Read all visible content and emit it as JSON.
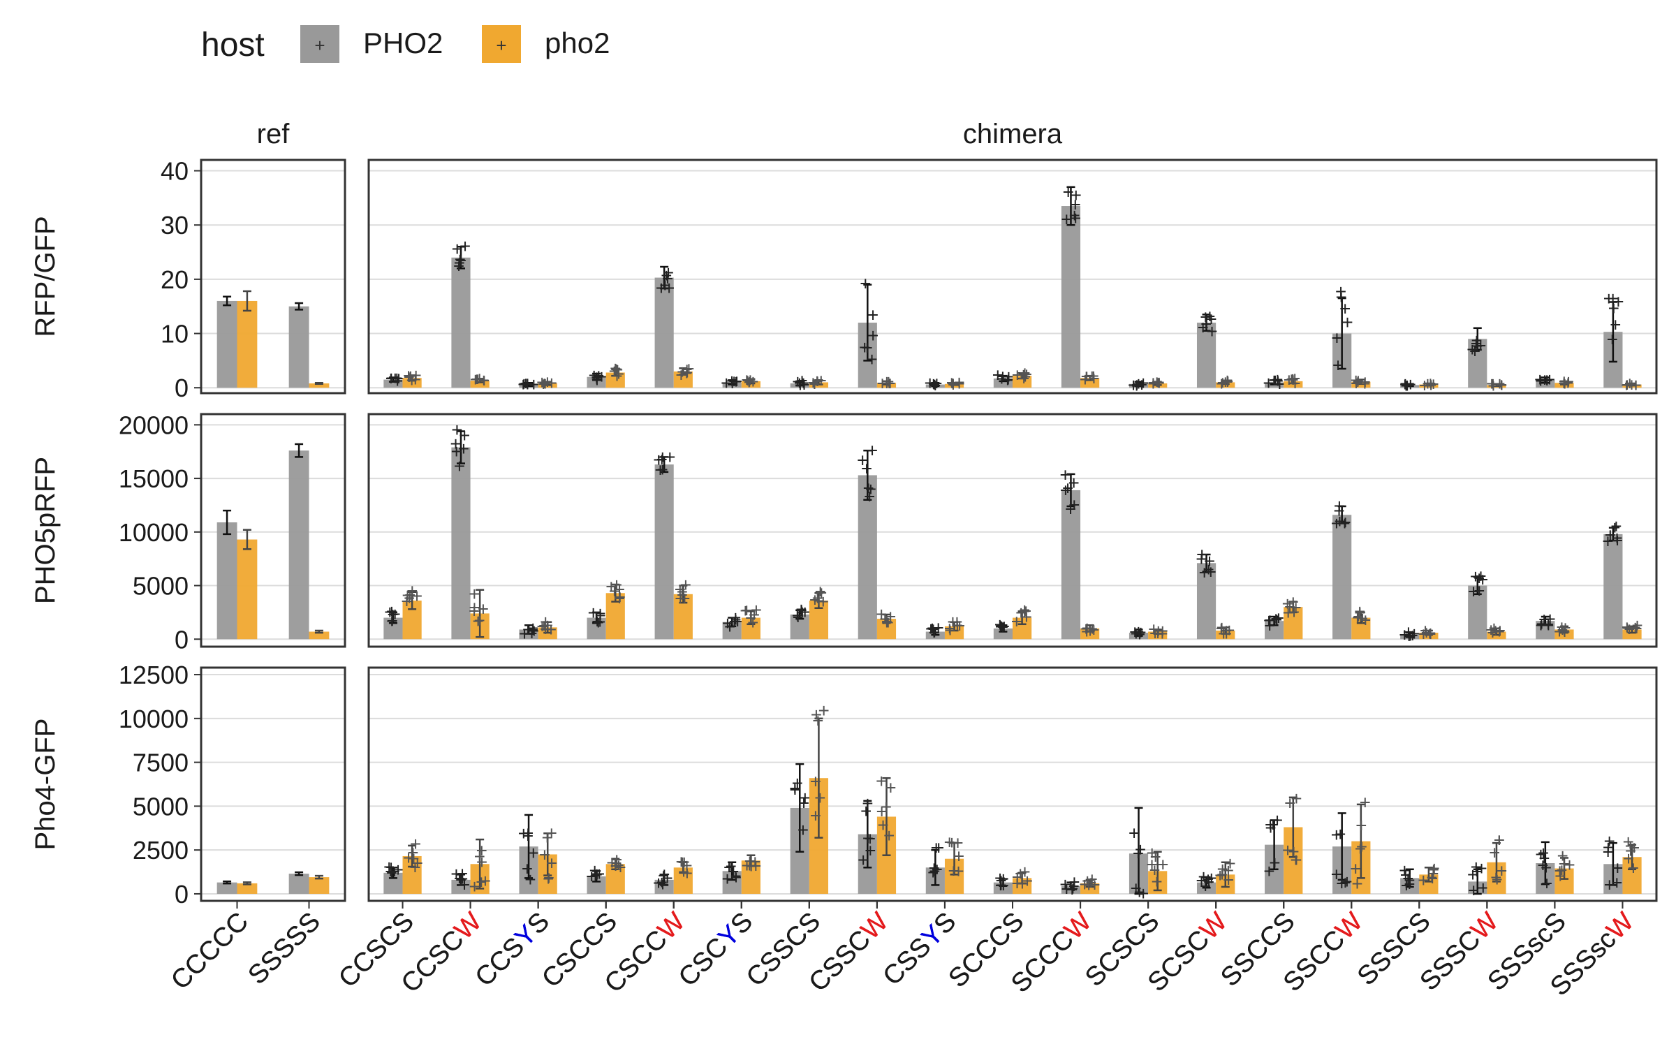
{
  "legend": {
    "title": "host",
    "items": [
      {
        "label": "PHO2",
        "color": "#999999"
      },
      {
        "label": "pho2",
        "color": "#F0A830"
      }
    ]
  },
  "chart_data": {
    "type": "bar",
    "facet_columns": [
      "ref",
      "chimera"
    ],
    "columns": {
      "ref": [
        [
          {
            "t": "CCCCC"
          }
        ],
        [
          {
            "t": "SSSSS"
          }
        ]
      ],
      "chimera": [
        [
          {
            "t": "CCSCS"
          }
        ],
        [
          {
            "t": "CCSC"
          },
          {
            "t": "W",
            "c": "#e41a1c"
          }
        ],
        [
          {
            "t": "CCS"
          },
          {
            "t": "Y",
            "c": "#0000dd"
          },
          {
            "t": "S"
          }
        ],
        [
          {
            "t": "CSCCS"
          }
        ],
        [
          {
            "t": "CSCC"
          },
          {
            "t": "W",
            "c": "#e41a1c"
          }
        ],
        [
          {
            "t": "CSC"
          },
          {
            "t": "Y",
            "c": "#0000dd"
          },
          {
            "t": "S"
          }
        ],
        [
          {
            "t": "CSSCS"
          }
        ],
        [
          {
            "t": "CSSC"
          },
          {
            "t": "W",
            "c": "#e41a1c"
          }
        ],
        [
          {
            "t": "CSS"
          },
          {
            "t": "Y",
            "c": "#0000dd"
          },
          {
            "t": "S"
          }
        ],
        [
          {
            "t": "SCCCS"
          }
        ],
        [
          {
            "t": "SCCC"
          },
          {
            "t": "W",
            "c": "#e41a1c"
          }
        ],
        [
          {
            "t": "SCSCS"
          }
        ],
        [
          {
            "t": "SCSC"
          },
          {
            "t": "W",
            "c": "#e41a1c"
          }
        ],
        [
          {
            "t": "SSCCS"
          }
        ],
        [
          {
            "t": "SSCC"
          },
          {
            "t": "W",
            "c": "#e41a1c"
          }
        ],
        [
          {
            "t": "SSSCS"
          }
        ],
        [
          {
            "t": "SSSC"
          },
          {
            "t": "W",
            "c": "#e41a1c"
          }
        ],
        [
          {
            "t": "SSSscS"
          }
        ],
        [
          {
            "t": "SSSsc"
          },
          {
            "t": "W",
            "c": "#e41a1c"
          }
        ]
      ]
    },
    "series": [
      "PHO2",
      "pho2"
    ],
    "rows": [
      {
        "ylabel": "RFP/GFP",
        "ylim": [
          -1,
          42
        ],
        "ticks": [
          0,
          10,
          20,
          30,
          40
        ],
        "ref": {
          "PHO2": [
            16,
            15
          ],
          "pho2": [
            16,
            0.8
          ],
          "PHO2_err": [
            0.8,
            0.6
          ],
          "pho2_err": [
            1.8,
            0.1
          ]
        },
        "chimera": {
          "PHO2": [
            1.5,
            24,
            0.6,
            2.0,
            20.3,
            1.0,
            0.8,
            12,
            0.6,
            1.7,
            33.5,
            0.7,
            12,
            1.0,
            10,
            0.5,
            9.0,
            1.4,
            10.3
          ],
          "pho2": [
            1.8,
            1.3,
            0.8,
            2.8,
            3.0,
            1.2,
            1.0,
            0.9,
            0.7,
            2.2,
            1.8,
            0.8,
            1.0,
            1.2,
            1.1,
            0.6,
            0.5,
            0.9,
            0.6
          ],
          "PHO2_err": [
            0.4,
            2.0,
            0.3,
            0.6,
            2.0,
            0.4,
            0.4,
            7.0,
            0.3,
            0.5,
            3.5,
            0.4,
            1.5,
            0.4,
            6.5,
            0.2,
            2.0,
            0.5,
            5.5
          ],
          "pho2_err": [
            0.5,
            0.3,
            0.3,
            0.6,
            0.6,
            0.4,
            0.4,
            0.3,
            0.2,
            0.5,
            0.4,
            0.3,
            0.3,
            0.4,
            0.4,
            0.2,
            0.2,
            0.3,
            0.2
          ]
        }
      },
      {
        "ylabel": "PHO5pRFP",
        "ylim": [
          -700,
          21000
        ],
        "ticks": [
          0,
          5000,
          10000,
          15000,
          20000
        ],
        "ref": {
          "PHO2": [
            10900,
            17600
          ],
          "pho2": [
            9300,
            700
          ],
          "PHO2_err": [
            1100,
            600
          ],
          "pho2_err": [
            900,
            100
          ]
        },
        "chimera": {
          "PHO2": [
            2000,
            17900,
            900,
            2000,
            16300,
            1600,
            2300,
            15300,
            700,
            1000,
            13900,
            600,
            7100,
            1700,
            11600,
            400,
            5000,
            1700,
            9800
          ],
          "pho2": [
            3600,
            2400,
            1100,
            4300,
            4200,
            2000,
            3600,
            1900,
            1200,
            2000,
            1000,
            700,
            800,
            3000,
            2000,
            600,
            700,
            900,
            900
          ],
          "PHO2_err": [
            500,
            1500,
            400,
            500,
            700,
            400,
            400,
            2300,
            300,
            300,
            1500,
            300,
            800,
            400,
            800,
            200,
            800,
            400,
            600
          ],
          "pho2_err": [
            800,
            2200,
            500,
            800,
            800,
            600,
            700,
            400,
            400,
            600,
            300,
            200,
            300,
            500,
            500,
            200,
            300,
            300,
            300
          ]
        }
      },
      {
        "ylabel": "Pho4-GFP",
        "ylim": [
          -400,
          12900
        ],
        "ticks": [
          0,
          2500,
          5000,
          7500,
          10000,
          12500
        ],
        "ref": {
          "PHO2": [
            650,
            1150
          ],
          "pho2": [
            600,
            950
          ],
          "PHO2_err": [
            60,
            80
          ],
          "pho2_err": [
            60,
            80
          ]
        },
        "chimera": {
          "PHO2": [
            1200,
            800,
            2700,
            1000,
            800,
            1300,
            4900,
            3400,
            1500,
            650,
            450,
            2300,
            650,
            2800,
            2700,
            900,
            700,
            1750,
            1700
          ],
          "pho2": [
            2150,
            1700,
            2250,
            1700,
            1500,
            1900,
            6600,
            4400,
            2000,
            900,
            600,
            1300,
            1100,
            3800,
            3000,
            1100,
            1800,
            1450,
            2100
          ],
          "PHO2_err": [
            300,
            300,
            1800,
            300,
            300,
            500,
            2500,
            1900,
            1000,
            200,
            200,
            2600,
            300,
            1400,
            1900,
            500,
            700,
            1200,
            1200
          ],
          "pho2_err": [
            600,
            1400,
            1200,
            300,
            300,
            300,
            3400,
            2200,
            900,
            300,
            200,
            1100,
            700,
            1700,
            2100,
            400,
            1100,
            600,
            700
          ]
        }
      }
    ]
  }
}
